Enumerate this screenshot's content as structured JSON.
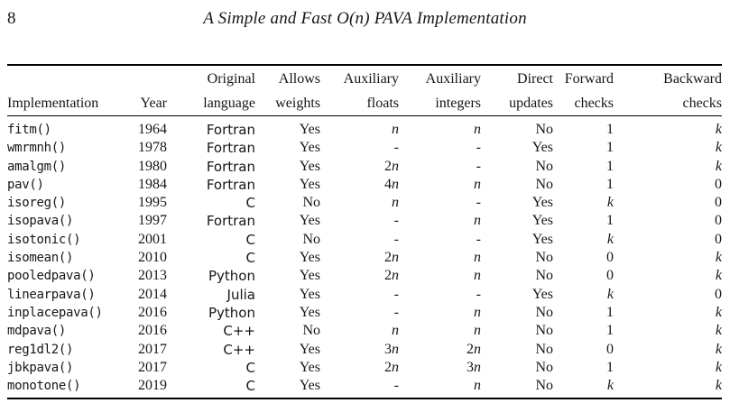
{
  "page": {
    "number": "8",
    "title": "A Simple and Fast O(n) PAVA Implementation"
  },
  "table": {
    "header_top": [
      "",
      "",
      "Original",
      "Allows",
      "Auxiliary",
      "Auxiliary",
      "Direct",
      "Forward",
      "Backward"
    ],
    "header_bottom": [
      "Implementation",
      "Year",
      "language",
      "weights",
      "floats",
      "integers",
      "updates",
      "checks",
      "checks"
    ],
    "rows": [
      [
        "fitm()",
        "1964",
        "Fortran",
        "Yes",
        "n",
        "n",
        "No",
        "1",
        "k"
      ],
      [
        "wmrmnh()",
        "1978",
        "Fortran",
        "Yes",
        "-",
        "-",
        "Yes",
        "1",
        "k"
      ],
      [
        "amalgm()",
        "1980",
        "Fortran",
        "Yes",
        "2n",
        "-",
        "No",
        "1",
        "k"
      ],
      [
        "pav()",
        "1984",
        "Fortran",
        "Yes",
        "4n",
        "n",
        "No",
        "1",
        "0"
      ],
      [
        "isoreg()",
        "1995",
        "C",
        "No",
        "n",
        "-",
        "Yes",
        "k",
        "0"
      ],
      [
        "isopava()",
        "1997",
        "Fortran",
        "Yes",
        "-",
        "n",
        "Yes",
        "1",
        "0"
      ],
      [
        "isotonic()",
        "2001",
        "C",
        "No",
        "-",
        "-",
        "Yes",
        "k",
        "0"
      ],
      [
        "isomean()",
        "2010",
        "C",
        "Yes",
        "2n",
        "n",
        "No",
        "0",
        "k"
      ],
      [
        "pooledpava()",
        "2013",
        "Python",
        "Yes",
        "2n",
        "n",
        "No",
        "0",
        "k"
      ],
      [
        "linearpava()",
        "2014",
        "Julia",
        "Yes",
        "-",
        "-",
        "Yes",
        "k",
        "0"
      ],
      [
        "inplacepava()",
        "2016",
        "Python",
        "Yes",
        "-",
        "n",
        "No",
        "1",
        "k"
      ],
      [
        "mdpava()",
        "2016",
        "C++",
        "No",
        "n",
        "n",
        "No",
        "1",
        "k"
      ],
      [
        "reg1dl2()",
        "2017",
        "C++",
        "Yes",
        "3n",
        "2n",
        "No",
        "0",
        "k"
      ],
      [
        "jbkpava()",
        "2017",
        "C",
        "Yes",
        "2n",
        "3n",
        "No",
        "1",
        "k"
      ],
      [
        "monotone()",
        "2019",
        "C",
        "Yes",
        "-",
        "n",
        "No",
        "k",
        "k"
      ]
    ]
  },
  "colors": {
    "background": "#ffffff",
    "text": "#161616",
    "rule": "#000000"
  }
}
